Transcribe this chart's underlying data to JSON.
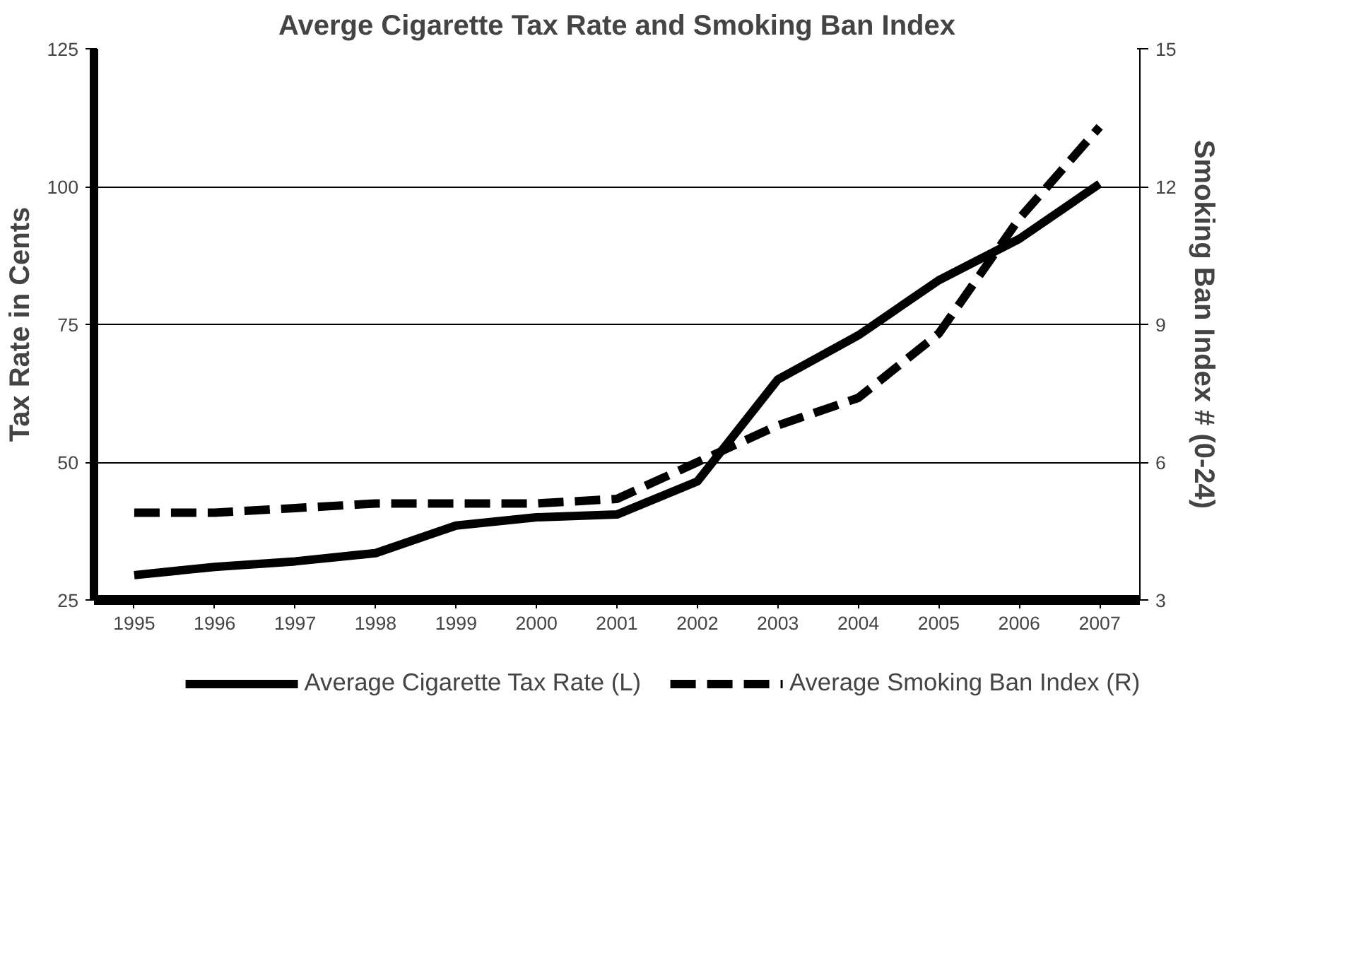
{
  "chart_data": {
    "type": "line",
    "title": "Averge Cigarette Tax Rate and Smoking Ban Index",
    "ylabel": "Tax Rate in Cents",
    "y2label": "Smoking Ban Index # (0-24)",
    "categories": [
      "1995",
      "1996",
      "1997",
      "1998",
      "1999",
      "2000",
      "2001",
      "2002",
      "2003",
      "2004",
      "2005",
      "2006",
      "2007"
    ],
    "series": [
      {
        "name": "Average Cigarette Tax Rate (L)",
        "color": "#000000",
        "line_style": "solid",
        "values": [
          29.5,
          31,
          32,
          33.5,
          38.5,
          40,
          40.5,
          46.5,
          65,
          73,
          83,
          90.5,
          100.5
        ]
      },
      {
        "name": "Average Smoking Ban Index (R)",
        "color": "#000000",
        "line_style": "dashed",
        "axis": "y2",
        "values": [
          4.9,
          4.9,
          5.0,
          5.1,
          5.1,
          5.1,
          5.2,
          6.0,
          6.8,
          7.4,
          8.8,
          11.3,
          13.3
        ]
      }
    ],
    "ylim": [
      25,
      125
    ],
    "yticks": [
      25,
      50,
      75,
      100,
      125
    ],
    "y2lim": [
      3,
      15
    ],
    "y2ticks": [
      3,
      6,
      9,
      12,
      15
    ],
    "grid": "y",
    "legend": "bottom",
    "marker": "none"
  }
}
